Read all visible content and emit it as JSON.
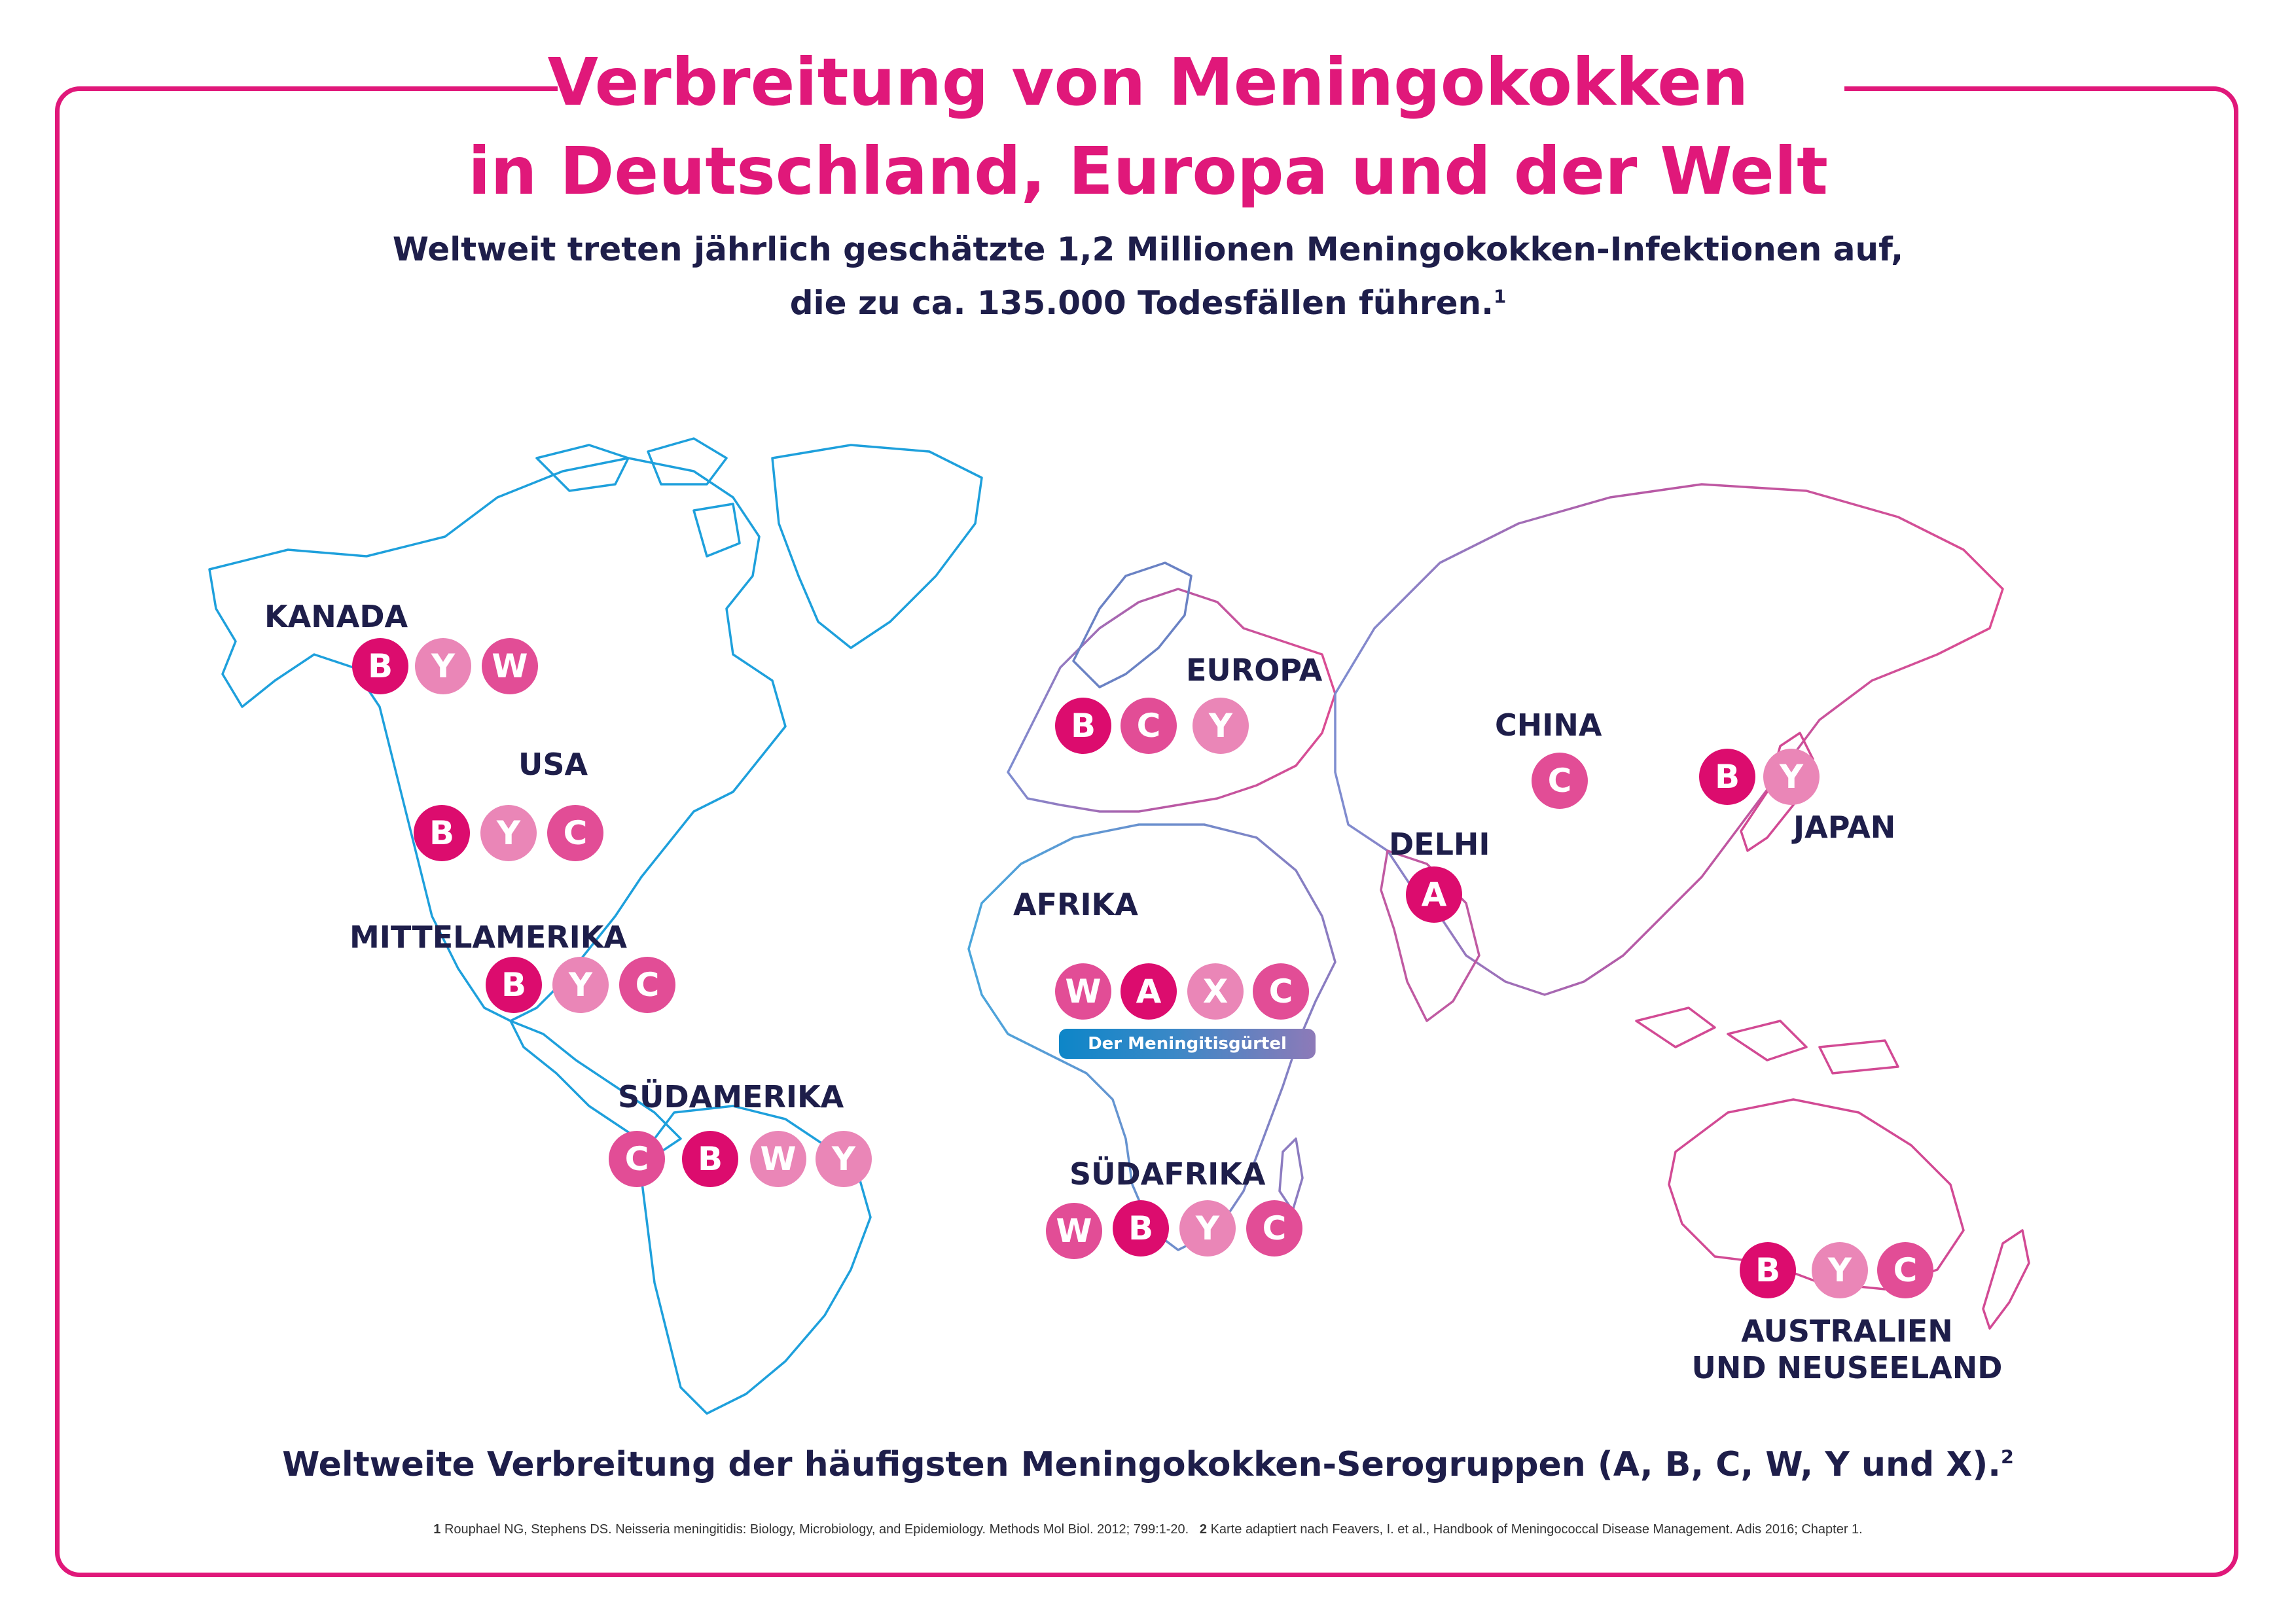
{
  "header": {
    "title_line1": "Verbreitung von Meningokokken",
    "title_line2": "in Deutschland, Europa und der Welt",
    "subtitle_line1": "Weltweit treten jährlich geschätzte 1,2 Millionen Meningokokken-Infektionen auf,",
    "subtitle_line2": "die zu ca. 135.000 Todesfällen führen.",
    "subtitle_ref": "1"
  },
  "colors": {
    "brand_pink": "#e0187a",
    "text_navy": "#1e1e4a",
    "americas_outline": "#1ea0dc",
    "europe_africa_outline": "#6a82c4",
    "asia_oceania_outline": "#d24a94"
  },
  "regions": {
    "kanada": {
      "label": "KANADA",
      "serogroups": [
        "B",
        "Y",
        "W"
      ]
    },
    "usa": {
      "label": "USA",
      "serogroups": [
        "B",
        "Y",
        "C"
      ]
    },
    "mittelamerika": {
      "label": "MITTELAMERIKA",
      "serogroups": [
        "B",
        "Y",
        "C"
      ]
    },
    "suedamerika": {
      "label": "SÜDAMERIKA",
      "serogroups": [
        "C",
        "B",
        "W",
        "Y"
      ]
    },
    "europa": {
      "label": "EUROPA",
      "serogroups": [
        "B",
        "C",
        "Y"
      ]
    },
    "afrika": {
      "label": "AFRIKA",
      "serogroups": [
        "W",
        "A",
        "X",
        "C"
      ],
      "belt_label": "Der Meningitisgürtel"
    },
    "suedafrika": {
      "label": "SÜDAFRIKA",
      "serogroups": [
        "W",
        "B",
        "Y",
        "C"
      ]
    },
    "china": {
      "label": "CHINA",
      "serogroups": [
        "C"
      ]
    },
    "delhi": {
      "label": "DELHI",
      "serogroups": [
        "A"
      ]
    },
    "japan": {
      "label": "JAPAN",
      "serogroups": [
        "B",
        "Y"
      ]
    },
    "australien": {
      "label_line1": "AUSTRALIEN",
      "label_line2": "UND NEUSEELAND",
      "serogroups": [
        "B",
        "Y",
        "C"
      ]
    }
  },
  "footer": {
    "caption": "Weltweite Verbreitung der häufigsten Meningokokken-Serogruppen (A, B, C, W, Y und X).",
    "caption_ref": "2",
    "footnote1_num": "1",
    "footnote1_text": "Rouphael NG, Stephens DS. Neisseria meningitidis: Biology, Microbiology, and Epidemiology. Methods Mol Biol. 2012; 799:1-20.",
    "footnote2_num": "2",
    "footnote2_text": "Karte adaptiert nach Feavers, I. et al., Handbook of Meningococcal Disease Management. Adis 2016; Chapter 1."
  }
}
